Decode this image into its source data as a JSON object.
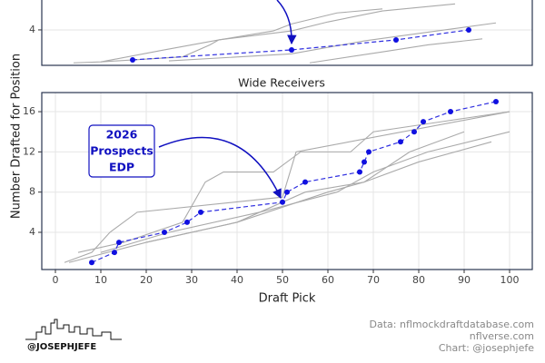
{
  "chart_data": [
    {
      "type": "line",
      "yticks": [
        4
      ],
      "ylim": [
        0.45,
        7.45
      ],
      "xlim": [
        -3,
        105
      ],
      "series": [
        {
          "color": "#aaaaaa",
          "x": [
            4,
            10,
            28,
            34,
            36,
            48,
            52,
            62,
            72
          ],
          "values": [
            0.7,
            0.8,
            1.3,
            2.5,
            3,
            3.9,
            4.6,
            5.7,
            6.1
          ]
        },
        {
          "color": "#aaaaaa",
          "x": [
            10,
            24,
            36,
            52,
            60,
            72,
            88
          ],
          "values": [
            0.8,
            2,
            3,
            3.9,
            4.8,
            5.9,
            6.6
          ]
        },
        {
          "color": "#aaaaaa",
          "x": [
            25,
            52,
            68,
            76,
            97
          ],
          "values": [
            0.9,
            1.6,
            2.9,
            3.4,
            4.7
          ]
        },
        {
          "color": "#aaaaaa",
          "x": [
            56,
            72,
            82,
            94
          ],
          "values": [
            0.7,
            1.8,
            2.5,
            3.1
          ]
        },
        {
          "color": "#3030e0",
          "dashed": true,
          "points": true,
          "x": [
            17,
            52,
            75,
            91
          ],
          "values": [
            1,
            2,
            3,
            4
          ]
        }
      ]
    },
    {
      "type": "line",
      "title": "Wide Receivers",
      "yticks": [
        4,
        8,
        12,
        16
      ],
      "ylim": [
        0.3,
        17.9
      ],
      "xlim": [
        -3,
        105
      ],
      "xticks": [
        0,
        10,
        20,
        30,
        40,
        50,
        60,
        70,
        80,
        90,
        100
      ],
      "series": [
        {
          "color": "#aaaaaa",
          "x": [
            2,
            8,
            12,
            18,
            50,
            53,
            100
          ],
          "values": [
            1,
            2,
            4,
            6,
            7.5,
            12,
            16
          ]
        },
        {
          "color": "#aaaaaa",
          "x": [
            5,
            15,
            28,
            33,
            37,
            48,
            54,
            65,
            70,
            85,
            100
          ],
          "values": [
            2,
            3,
            5,
            9,
            10,
            10,
            12,
            12,
            14,
            15,
            16
          ]
        },
        {
          "color": "#aaaaaa",
          "x": [
            3,
            20,
            40,
            60,
            68,
            78,
            90
          ],
          "values": [
            1,
            3,
            5,
            8,
            9,
            12,
            14
          ]
        },
        {
          "color": "#aaaaaa",
          "x": [
            10,
            25,
            45,
            62,
            70,
            82,
            100
          ],
          "values": [
            2,
            4,
            6,
            8,
            10,
            12,
            14
          ]
        },
        {
          "color": "#aaaaaa",
          "x": [
            20,
            40,
            55,
            68,
            80,
            96
          ],
          "values": [
            3,
            5,
            8,
            9,
            11,
            13
          ]
        },
        {
          "color": "#3030e0",
          "dashed": true,
          "points": true,
          "x": [
            8,
            13,
            14,
            24,
            29,
            32,
            50,
            51,
            55,
            67,
            68,
            69,
            76,
            79,
            81,
            87,
            97
          ],
          "values": [
            1,
            2,
            3,
            4,
            5,
            6,
            7,
            8,
            9,
            10,
            11,
            12,
            13,
            14,
            15,
            16,
            17
          ]
        }
      ],
      "annotation": [
        "2026",
        "Prospects",
        "EDP"
      ]
    }
  ],
  "y_label": "Number Drafted for Position",
  "x_label": "Draft Pick",
  "credits": [
    "Data: nflmockdraftdatabase.com",
    "nflverse.com",
    "Chart: @josephjefe"
  ],
  "logo": "@JOSEPHJEFE"
}
